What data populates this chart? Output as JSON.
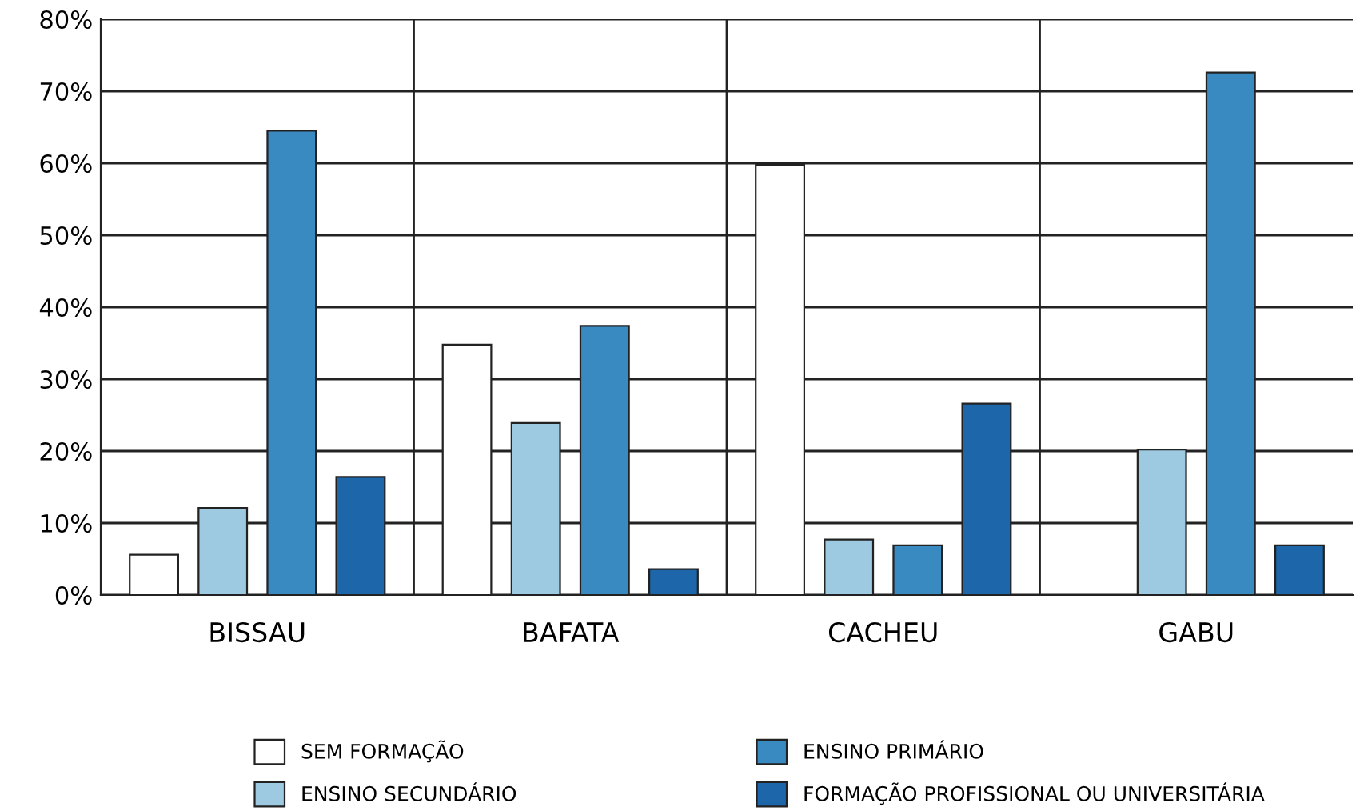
{
  "chart_data": {
    "type": "bar",
    "categories": [
      "BISSAU",
      "BAFATA",
      "CACHEU",
      "GABU"
    ],
    "series": [
      {
        "name": "SEM FORMAÇÃO",
        "color": "#ffffff",
        "values": [
          5.6,
          34.8,
          59.8,
          null
        ]
      },
      {
        "name": "ENSINO SECUNDÁRIO",
        "color": "#9ecae1",
        "values": [
          12.1,
          23.9,
          7.7,
          20.2
        ]
      },
      {
        "name": "ENSINO PRIMÁRIO",
        "color": "#3a8ac2",
        "values": [
          64.5,
          37.4,
          6.9,
          72.6
        ]
      },
      {
        "name": "FORMAÇÃO PROFISSIONAL OU UNIVERSITÁRIA",
        "color": "#1c66a9",
        "values": [
          16.4,
          3.6,
          26.6,
          6.9
        ]
      }
    ],
    "ylim": [
      0,
      80
    ],
    "yticks": [
      {
        "value": 0,
        "label": "0%"
      },
      {
        "value": 10,
        "label": "10%"
      },
      {
        "value": 20,
        "label": "20%"
      },
      {
        "value": 30,
        "label": "30%"
      },
      {
        "value": 40,
        "label": "40%"
      },
      {
        "value": 50,
        "label": "50%"
      },
      {
        "value": 60,
        "label": "60%"
      },
      {
        "value": 70,
        "label": "70%"
      },
      {
        "value": 80,
        "label": "80%"
      }
    ],
    "grid": true,
    "legend": "bottom"
  }
}
